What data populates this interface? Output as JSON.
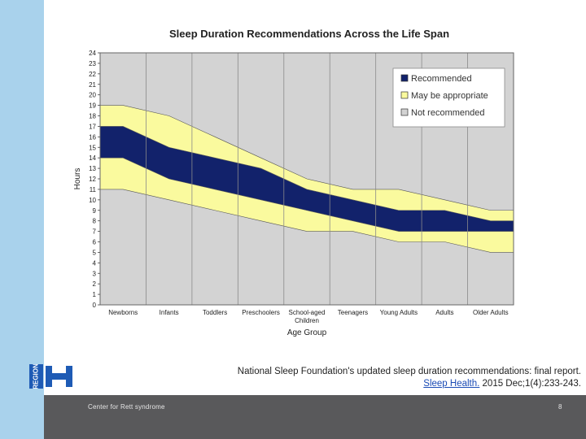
{
  "chart_data": {
    "type": "area",
    "title": "Sleep Duration Recommendations Across the Life Span",
    "xlabel": "Age Group",
    "ylabel": "Hours",
    "ylim": [
      0,
      24
    ],
    "yticks": [
      0,
      1,
      2,
      3,
      4,
      5,
      6,
      7,
      8,
      9,
      10,
      11,
      12,
      13,
      14,
      15,
      16,
      17,
      18,
      19,
      20,
      21,
      22,
      23,
      24
    ],
    "grid": "vertical",
    "categories": [
      "Newborns",
      "Infants",
      "Toddlers",
      "Preschoolers",
      "School-aged Children",
      "Teenagers",
      "Young Adults",
      "Adults",
      "Older Adults"
    ],
    "category_lines": [
      [
        "Newborns"
      ],
      [
        "Infants"
      ],
      [
        "Toddlers"
      ],
      [
        "Preschoolers"
      ],
      [
        "School-aged",
        "Children"
      ],
      [
        "Teenagers"
      ],
      [
        "Young Adults"
      ],
      [
        "Adults"
      ],
      [
        "Older Adults"
      ]
    ],
    "series": [
      {
        "name": "Not recommended (low)",
        "values": [
          11,
          10,
          9,
          8,
          7,
          7,
          6,
          6,
          5
        ]
      },
      {
        "name": "May be appropriate (lower bound)",
        "values": [
          11,
          10,
          9,
          8,
          7,
          7,
          6,
          6,
          5
        ]
      },
      {
        "name": "Recommended (lower bound)",
        "values": [
          14,
          12,
          11,
          10,
          9,
          8,
          7,
          7,
          7
        ]
      },
      {
        "name": "Recommended (upper bound)",
        "values": [
          17,
          15,
          14,
          13,
          11,
          10,
          9,
          9,
          8
        ]
      },
      {
        "name": "May be appropriate (upper bound)",
        "values": [
          19,
          18,
          16,
          14,
          12,
          11,
          11,
          10,
          9
        ]
      }
    ],
    "legend": {
      "position": "top-right",
      "entries": [
        {
          "label": "Recommended",
          "color": "#12226b"
        },
        {
          "label": "May be appropriate",
          "color": "#fafa9e"
        },
        {
          "label": "Not recommended",
          "color": "#d3d3d3"
        }
      ]
    }
  },
  "citation": {
    "line1": "National Sleep Foundation's updated sleep duration recommendations: final report.",
    "link": "Sleep Health.",
    "rest": " 2015 Dec;1(4):233-243."
  },
  "footer": {
    "organization": "Center for Rett syndrome",
    "page_number": "8"
  },
  "logo": {
    "text": "REGION",
    "color": "#1e5bb5"
  }
}
